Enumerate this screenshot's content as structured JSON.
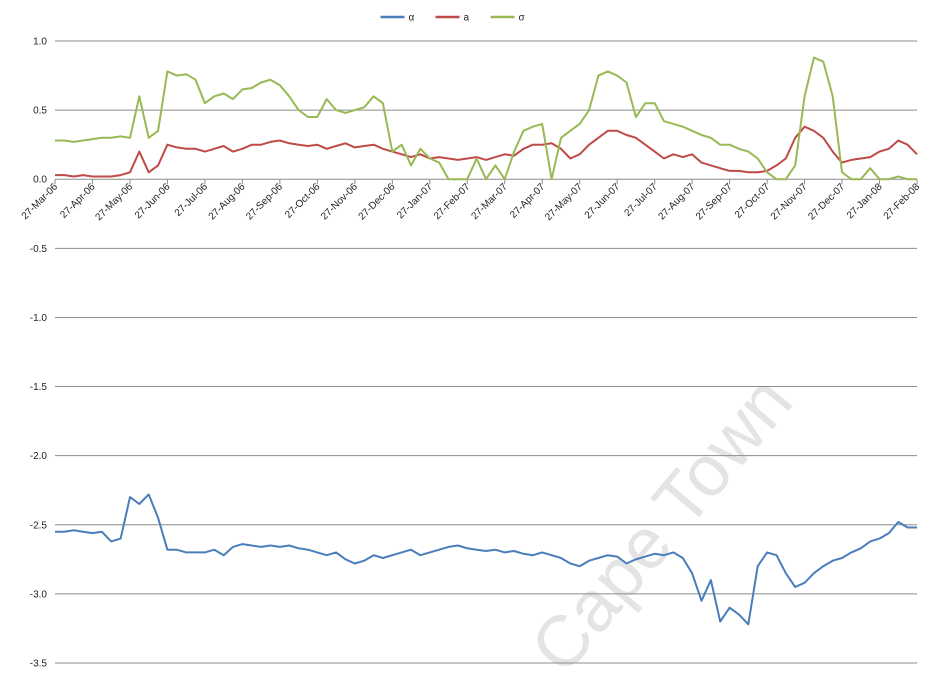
{
  "chart_data": {
    "type": "line",
    "categories": [
      "27-Mar-06",
      null,
      null,
      null,
      "27-Apr-06",
      null,
      null,
      null,
      "27-May-06",
      null,
      null,
      null,
      "27-Jun-06",
      null,
      null,
      null,
      "27-Jul-06",
      null,
      null,
      null,
      "27-Aug-06",
      null,
      null,
      null,
      "27-Sep-06",
      null,
      null,
      null,
      "27-Oct-06",
      null,
      null,
      null,
      "27-Nov-06",
      null,
      null,
      null,
      "27-Dec-06",
      null,
      null,
      null,
      "27-Jan-07",
      null,
      null,
      null,
      "27-Feb-07",
      null,
      null,
      null,
      "27-Mar-07",
      null,
      null,
      null,
      "27-Apr-07",
      null,
      null,
      null,
      "27-May-07",
      null,
      null,
      null,
      "27-Jun-07",
      null,
      null,
      null,
      "27-Jul-07",
      null,
      null,
      null,
      "27-Aug-07",
      null,
      null,
      null,
      "27-Sep-07",
      null,
      null,
      null,
      "27-Oct-07",
      null,
      null,
      null,
      "27-Nov-07",
      null,
      null,
      null,
      "27-Dec-07",
      null,
      null,
      null,
      "27-Jan-08",
      null,
      null,
      null,
      "27-Feb-08"
    ],
    "series": [
      {
        "name": "α",
        "color": "#4a7ebb",
        "values": [
          -2.55,
          -2.55,
          -2.54,
          -2.55,
          -2.56,
          -2.55,
          -2.62,
          -2.6,
          -2.3,
          -2.35,
          -2.28,
          -2.45,
          -2.68,
          -2.68,
          -2.7,
          -2.7,
          -2.7,
          -2.68,
          -2.72,
          -2.66,
          -2.64,
          -2.65,
          -2.66,
          -2.65,
          -2.66,
          -2.65,
          -2.67,
          -2.68,
          -2.7,
          -2.72,
          -2.7,
          -2.75,
          -2.78,
          -2.76,
          -2.72,
          -2.74,
          -2.72,
          -2.7,
          -2.68,
          -2.72,
          -2.7,
          -2.68,
          -2.66,
          -2.65,
          -2.67,
          -2.68,
          -2.69,
          -2.68,
          -2.7,
          -2.69,
          -2.71,
          -2.72,
          -2.7,
          -2.72,
          -2.74,
          -2.78,
          -2.8,
          -2.76,
          -2.74,
          -2.72,
          -2.73,
          -2.78,
          -2.75,
          -2.73,
          -2.71,
          -2.72,
          -2.7,
          -2.74,
          -2.85,
          -3.05,
          -2.9,
          -3.2,
          -3.1,
          -3.15,
          -3.22,
          -2.8,
          -2.7,
          -2.72,
          -2.85,
          -2.95,
          -2.92,
          -2.85,
          -2.8,
          -2.76,
          -2.74,
          -2.7,
          -2.67,
          -2.62,
          -2.6,
          -2.56,
          -2.48,
          -2.52,
          -2.52
        ]
      },
      {
        "name": "a",
        "color": "#be4b48",
        "values": [
          0.03,
          0.03,
          0.02,
          0.03,
          0.02,
          0.02,
          0.02,
          0.03,
          0.05,
          0.2,
          0.05,
          0.1,
          0.25,
          0.23,
          0.22,
          0.22,
          0.2,
          0.22,
          0.24,
          0.2,
          0.22,
          0.25,
          0.25,
          0.27,
          0.28,
          0.26,
          0.25,
          0.24,
          0.25,
          0.22,
          0.24,
          0.26,
          0.23,
          0.24,
          0.25,
          0.22,
          0.2,
          0.18,
          0.16,
          0.18,
          0.15,
          0.16,
          0.15,
          0.14,
          0.15,
          0.16,
          0.14,
          0.16,
          0.18,
          0.17,
          0.22,
          0.25,
          0.25,
          0.26,
          0.22,
          0.15,
          0.18,
          0.25,
          0.3,
          0.35,
          0.35,
          0.32,
          0.3,
          0.25,
          0.2,
          0.15,
          0.18,
          0.16,
          0.18,
          0.12,
          0.1,
          0.08,
          0.06,
          0.06,
          0.05,
          0.05,
          0.06,
          0.1,
          0.15,
          0.3,
          0.38,
          0.35,
          0.3,
          0.2,
          0.12,
          0.14,
          0.15,
          0.16,
          0.2,
          0.22,
          0.28,
          0.25,
          0.18
        ]
      },
      {
        "name": "σ",
        "color": "#98b954",
        "values": [
          0.28,
          0.28,
          0.27,
          0.28,
          0.29,
          0.3,
          0.3,
          0.31,
          0.3,
          0.6,
          0.3,
          0.35,
          0.78,
          0.75,
          0.76,
          0.72,
          0.55,
          0.6,
          0.62,
          0.58,
          0.65,
          0.66,
          0.7,
          0.72,
          0.68,
          0.6,
          0.5,
          0.45,
          0.45,
          0.58,
          0.5,
          0.48,
          0.5,
          0.52,
          0.6,
          0.55,
          0.2,
          0.25,
          0.1,
          0.22,
          0.15,
          0.12,
          0,
          0,
          0,
          0.15,
          0,
          0.1,
          0,
          0.2,
          0.35,
          0.38,
          0.4,
          0,
          0.3,
          0.35,
          0.4,
          0.5,
          0.75,
          0.78,
          0.75,
          0.7,
          0.45,
          0.55,
          0.55,
          0.42,
          0.4,
          0.38,
          0.35,
          0.32,
          0.3,
          0.25,
          0.25,
          0.22,
          0.2,
          0.15,
          0.05,
          0,
          0,
          0.1,
          0.6,
          0.88,
          0.85,
          0.6,
          0.05,
          0,
          0,
          0.08,
          0,
          0,
          0.02,
          0,
          0
        ]
      }
    ],
    "ylim": [
      -3.5,
      1
    ],
    "yticks": [
      {
        "value": 1,
        "label": "1.0"
      },
      0.5,
      {
        "value": 0,
        "label": "0.0"
      },
      -0.5,
      {
        "value": -1,
        "label": "-1.0"
      },
      -1.5,
      {
        "value": -2,
        "label": "-2.0"
      },
      -2.5,
      {
        "value": -3,
        "label": "-3.0"
      },
      -3.5
    ],
    "grid": true,
    "legend": "top",
    "watermark": "Cape Town"
  }
}
